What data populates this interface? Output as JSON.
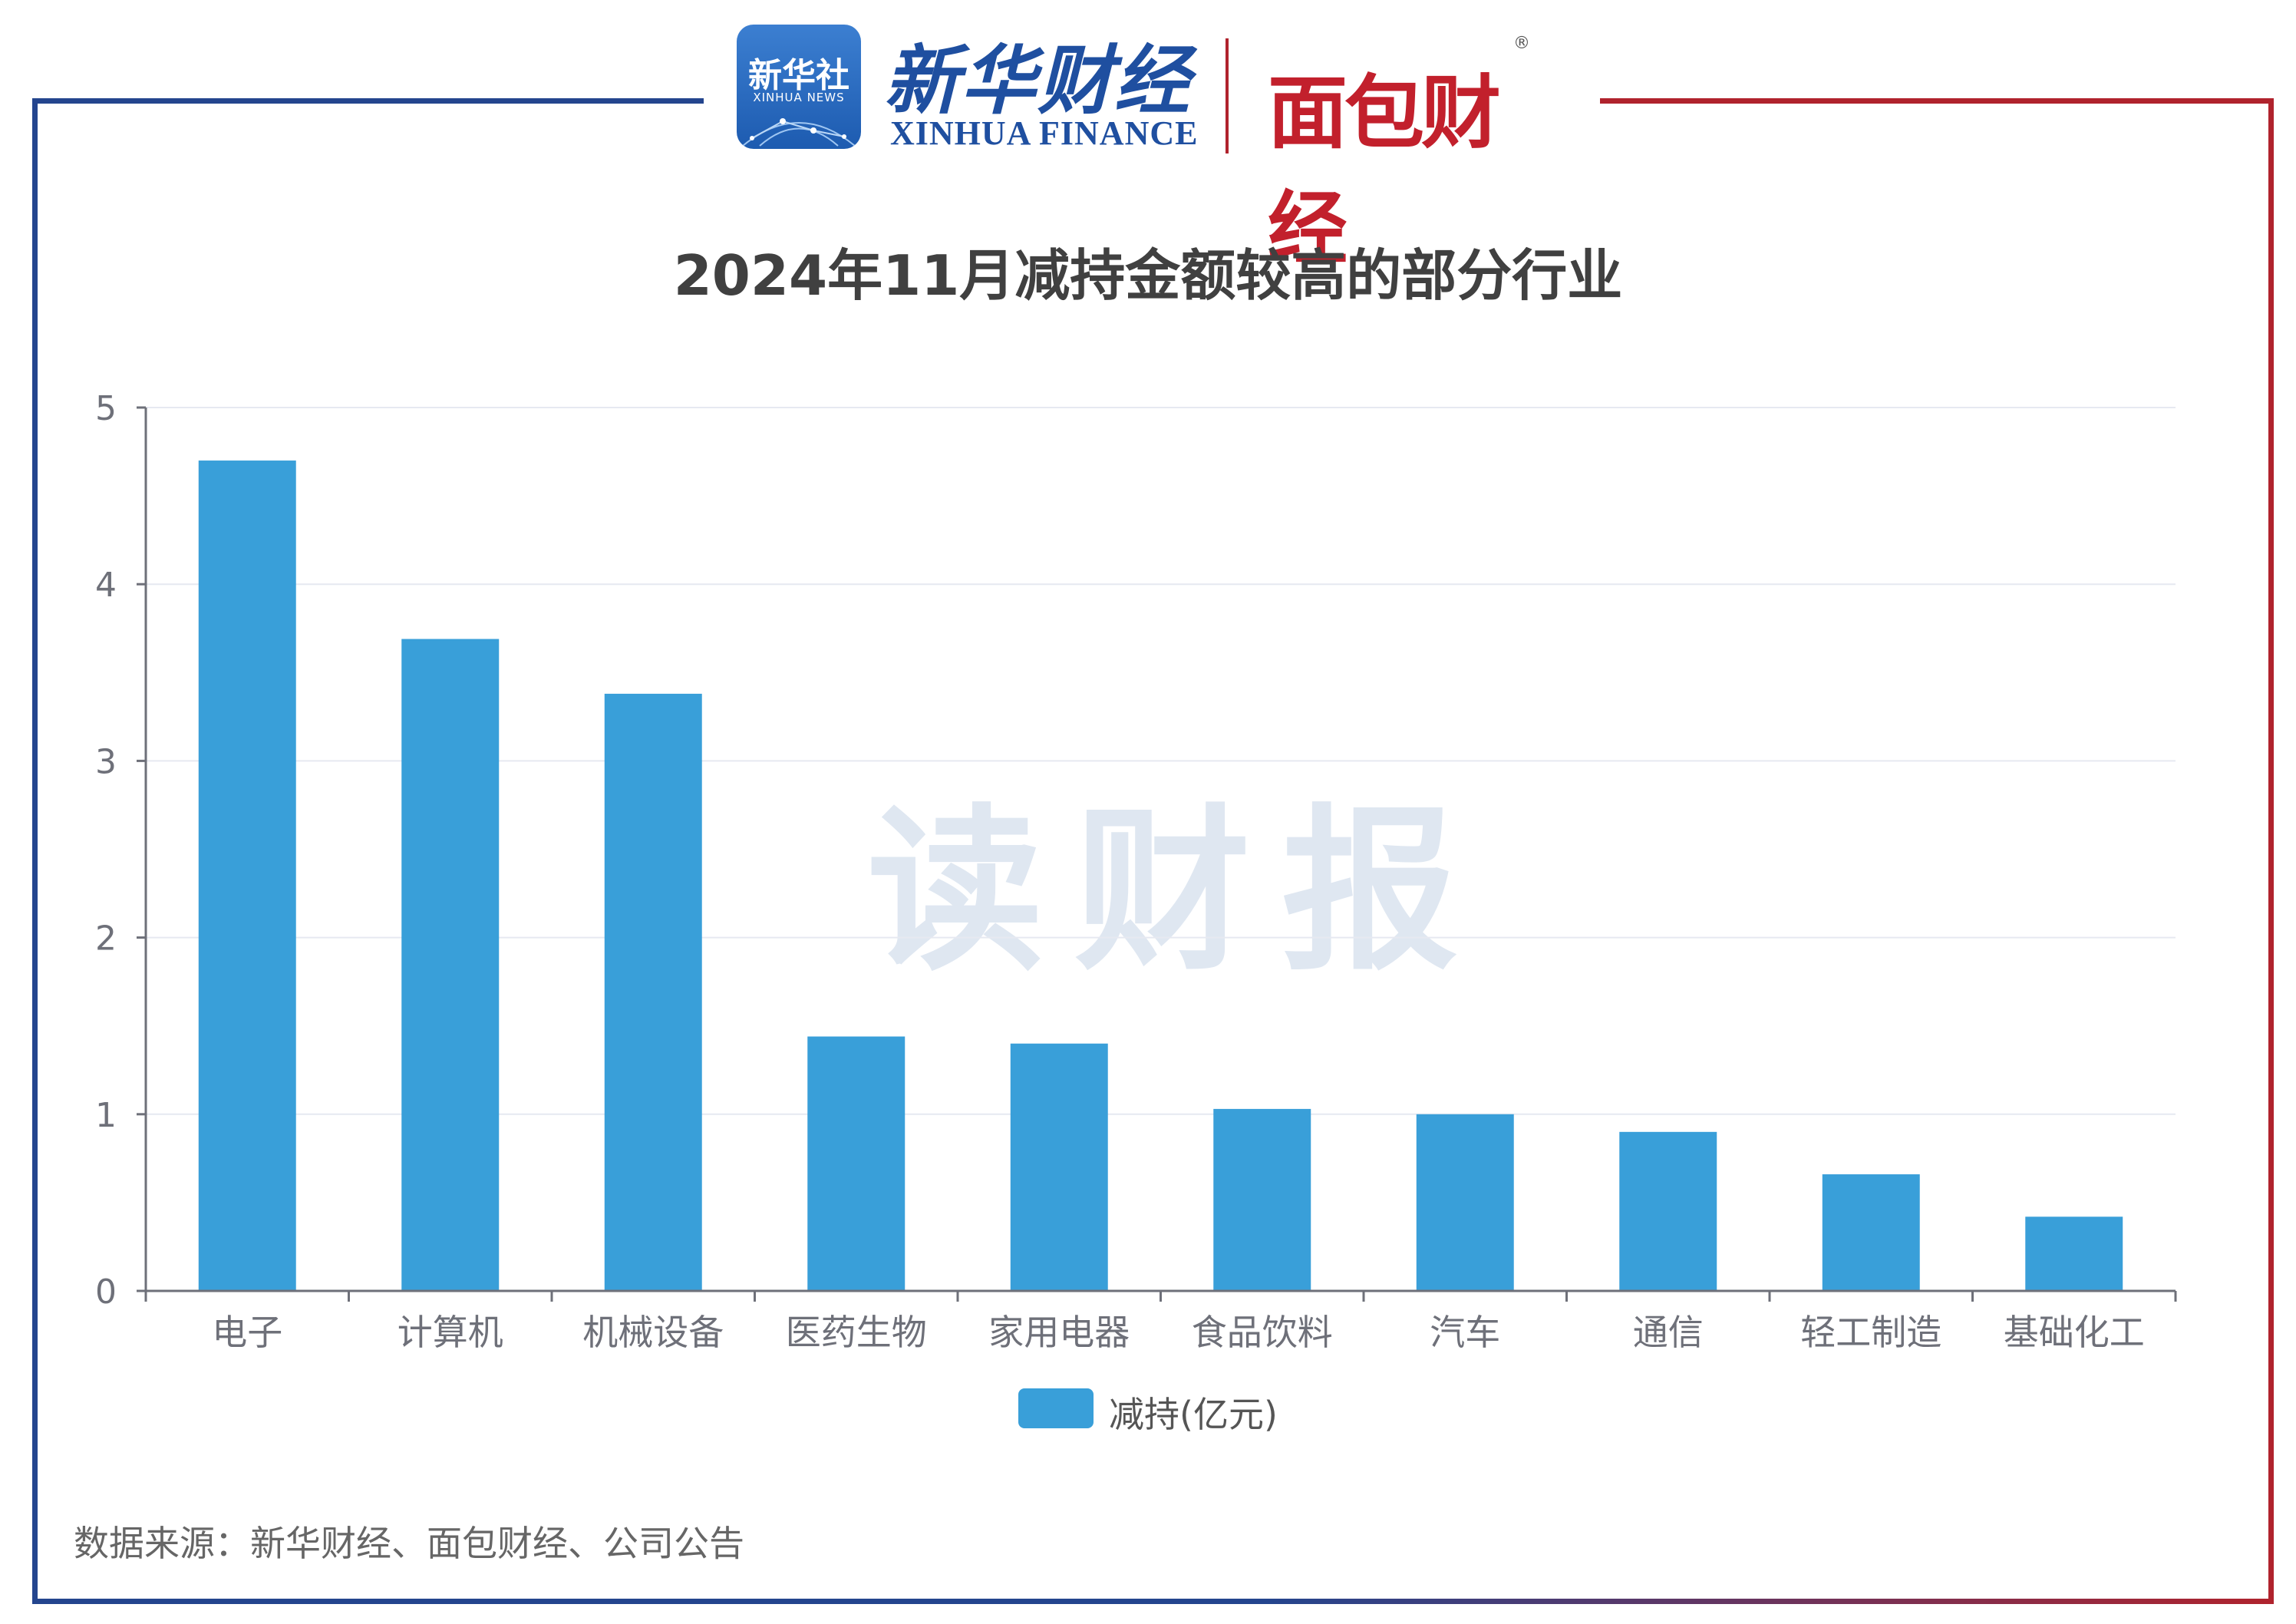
{
  "header": {
    "xinhua_badge_cn": "新华社",
    "xinhua_badge_en": "XINHUA NEWS",
    "xinhua_finance_cn": "新华财经",
    "xinhua_finance_en": "XINHUA FINANCE",
    "mianbao_logo": "面包财经",
    "reg_mark": "®"
  },
  "watermark": "读财报",
  "colors": {
    "bar": "#399fd9",
    "frame_left": "#24458e",
    "frame_right": "#b0232d",
    "grid": "#e6e9f1"
  },
  "chart_data": {
    "type": "bar",
    "title": "2024年11月减持金额较高的部分行业",
    "categories": [
      "电子",
      "计算机",
      "机械设备",
      "医药生物",
      "家用电器",
      "食品饮料",
      "汽车",
      "通信",
      "轻工制造",
      "基础化工"
    ],
    "series": [
      {
        "name": "减持(亿元)",
        "values": [
          4.7,
          3.69,
          3.38,
          1.44,
          1.4,
          1.03,
          1.0,
          0.9,
          0.66,
          0.42
        ]
      }
    ],
    "ylim": [
      0,
      5
    ],
    "yticks": [
      "0",
      "1",
      "2",
      "3",
      "4",
      "5"
    ],
    "grid": true,
    "legend": "bottom-center"
  },
  "footer": {
    "source": "数据来源：新华财经、面包财经、公司公告"
  }
}
